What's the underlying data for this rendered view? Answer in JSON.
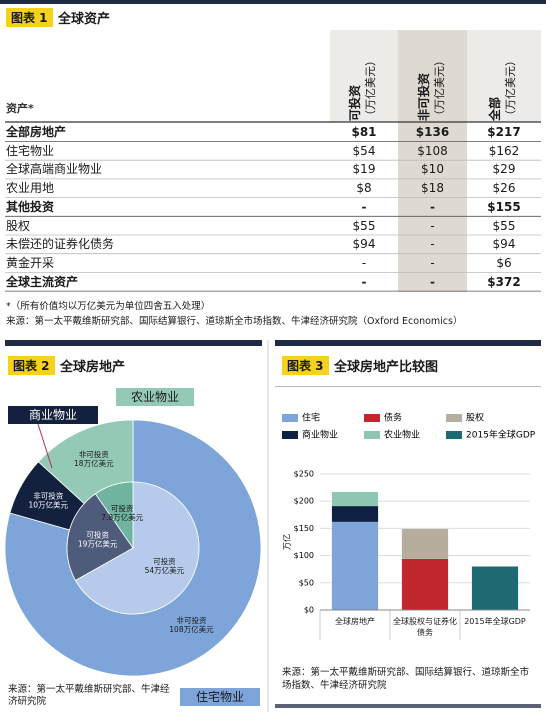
{
  "table": {
    "label": "图表 1",
    "title": "全球资产",
    "row_header": "资产*",
    "columns": [
      {
        "name": "可投资",
        "unit": "（万亿美元）"
      },
      {
        "name": "非可投资",
        "unit": "（万亿美元）"
      },
      {
        "name": "全部",
        "unit": "（万亿美元）"
      }
    ],
    "rows": [
      {
        "cells": [
          "全部房地产",
          "$81",
          "$136",
          "$217"
        ],
        "bold": true
      },
      {
        "cells": [
          "住宅物业",
          "$54",
          "$108",
          "$162"
        ],
        "bold": false
      },
      {
        "cells": [
          "全球高端商业物业",
          "$19",
          "$10",
          "$29"
        ],
        "bold": false
      },
      {
        "cells": [
          "农业用地",
          "$8",
          "$18",
          "$26"
        ],
        "bold": false
      },
      {
        "cells": [
          "其他投资",
          "-",
          "-",
          "$155"
        ],
        "bold": true
      },
      {
        "cells": [
          "股权",
          "$55",
          "-",
          "$55"
        ],
        "bold": false
      },
      {
        "cells": [
          "未偿还的证券化债务",
          "$94",
          "-",
          "$94"
        ],
        "bold": false
      },
      {
        "cells": [
          "黄金开采",
          "-",
          "-",
          "$6"
        ],
        "bold": false
      },
      {
        "cells": [
          "全球主流资产",
          "-",
          "-",
          "$372"
        ],
        "bold": true
      }
    ],
    "note": "*（所有价值均以万亿美元为单位四舍五入处理）",
    "source": "来源：第一太平戴维斯研究部、国际结算银行、道琼斯全市场指数、牛津经济研究院（Oxford Economics）"
  },
  "chart_data": [
    {
      "type": "sunburst",
      "label": "图表 2",
      "title": "全球房地产",
      "categories": [
        "住宅物业",
        "商业物业",
        "农业物业"
      ],
      "rings": [
        {
          "values": [
            54,
            19,
            7.8
          ],
          "value_labels": [
            "可投资 54万亿美元",
            "可投资 19万亿美元",
            "可投资 7.8万亿美元"
          ],
          "colors": [
            "#b6cbeb",
            "#4f5b7b",
            "#6fb3a0"
          ]
        },
        {
          "values": [
            108,
            10,
            18
          ],
          "value_labels": [
            "非可投资 108万亿美元",
            "非可投资 10万亿美元",
            "非可投资 18万亿美元"
          ],
          "colors": [
            "#7ea5da",
            "#13213f",
            "#94c9b6"
          ]
        }
      ],
      "source": "来源：第一太平戴维斯研究部、牛津经济研究院"
    },
    {
      "type": "bar",
      "label": "图表 3",
      "title": "全球房地产比较图",
      "categories": [
        "全球房地产",
        "全球股权与证券化债务",
        "2015年全球GDP"
      ],
      "series": [
        {
          "name": "住宅",
          "color": "#7ea5da",
          "values": [
            162,
            null,
            null
          ]
        },
        {
          "name": "债务",
          "color": "#c1272d",
          "values": [
            null,
            94,
            null
          ]
        },
        {
          "name": "股权",
          "color": "#b7ad9f",
          "values": [
            null,
            55,
            null
          ]
        },
        {
          "name": "商业物业",
          "color": "#0f2142",
          "values": [
            29,
            null,
            null
          ]
        },
        {
          "name": "农业物业",
          "color": "#8fc6b2",
          "values": [
            26,
            null,
            null
          ]
        },
        {
          "name": "2015年全球GDP",
          "color": "#1e6a73",
          "values": [
            null,
            null,
            80
          ]
        }
      ],
      "ylabel": "万亿",
      "ylim": [
        0,
        250
      ],
      "yticks": [
        {
          "value": 0,
          "label": "$0"
        },
        {
          "value": 50,
          "label": "$50"
        },
        {
          "value": 100,
          "label": "$100"
        },
        {
          "value": 150,
          "label": "$150"
        },
        {
          "value": 200,
          "label": "$200"
        },
        {
          "value": 250,
          "label": "$250"
        }
      ],
      "grid": true,
      "source": "来源：第一太平戴维斯研究部、国际结算银行、道琼斯全市场指数、牛津经济研究院"
    }
  ]
}
